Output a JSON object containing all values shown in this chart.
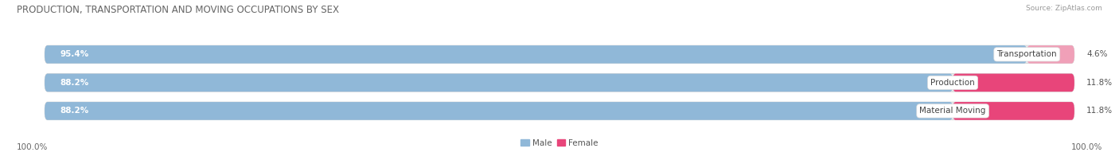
{
  "title": "PRODUCTION, TRANSPORTATION AND MOVING OCCUPATIONS BY SEX",
  "source": "Source: ZipAtlas.com",
  "categories": [
    "Transportation",
    "Production",
    "Material Moving"
  ],
  "male_values": [
    95.4,
    88.2,
    88.2
  ],
  "female_values": [
    4.6,
    11.8,
    11.8
  ],
  "male_color": "#90b8d8",
  "female_colors": [
    "#f0a0b8",
    "#e8457a",
    "#e8457a"
  ],
  "bar_bg_color": "#e8e8ec",
  "title_fontsize": 8.5,
  "source_fontsize": 6.5,
  "label_fontsize": 7.5,
  "pct_fontsize": 7.5,
  "bar_height": 0.62,
  "background_color": "#ffffff",
  "left_100": "100.0%",
  "right_100": "100.0%"
}
